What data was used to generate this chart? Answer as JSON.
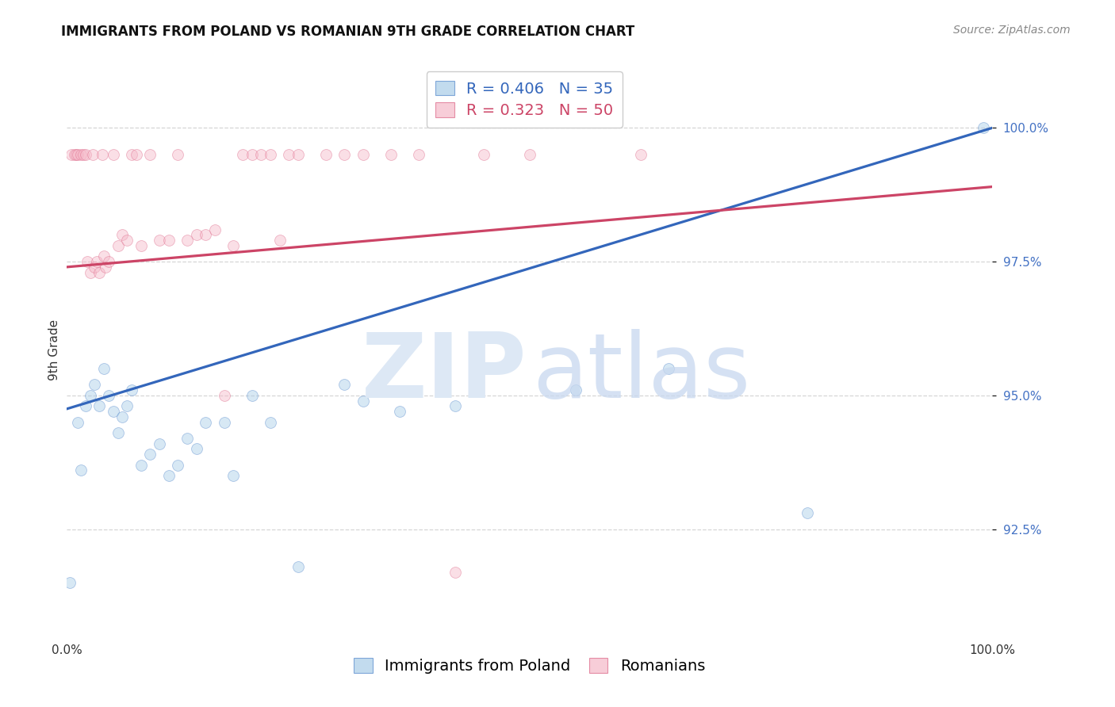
{
  "title": "IMMIGRANTS FROM POLAND VS ROMANIAN 9TH GRADE CORRELATION CHART",
  "source": "Source: ZipAtlas.com",
  "ylabel": "9th Grade",
  "blue_label": "Immigrants from Poland",
  "pink_label": "Romanians",
  "blue_R": 0.406,
  "blue_N": 35,
  "pink_R": 0.323,
  "pink_N": 50,
  "blue_fill_color": "#a8cce8",
  "pink_fill_color": "#f5b8c8",
  "blue_edge_color": "#5588cc",
  "pink_edge_color": "#dd6688",
  "blue_line_color": "#3366bb",
  "pink_line_color": "#cc4466",
  "xlim": [
    0.0,
    100.0
  ],
  "ylim": [
    90.5,
    101.2
  ],
  "yticks": [
    92.5,
    95.0,
    97.5,
    100.0
  ],
  "xtick_values": [
    0.0,
    20.0,
    40.0,
    60.0,
    80.0,
    100.0
  ],
  "xtick_labels": [
    "0.0%",
    "",
    "",
    "",
    "",
    "100.0%"
  ],
  "blue_scatter_x": [
    0.3,
    1.2,
    1.5,
    2.0,
    2.5,
    3.0,
    3.5,
    4.0,
    4.5,
    5.0,
    5.5,
    6.0,
    6.5,
    7.0,
    8.0,
    9.0,
    10.0,
    11.0,
    12.0,
    13.0,
    14.0,
    15.0,
    17.0,
    18.0,
    20.0,
    22.0,
    25.0,
    30.0,
    32.0,
    36.0,
    42.0,
    55.0,
    65.0,
    80.0,
    99.0
  ],
  "blue_scatter_y": [
    91.5,
    94.5,
    93.6,
    94.8,
    95.0,
    95.2,
    94.8,
    95.5,
    95.0,
    94.7,
    94.3,
    94.6,
    94.8,
    95.1,
    93.7,
    93.9,
    94.1,
    93.5,
    93.7,
    94.2,
    94.0,
    94.5,
    94.5,
    93.5,
    95.0,
    94.5,
    91.8,
    95.2,
    94.9,
    94.7,
    94.8,
    95.1,
    95.5,
    92.8,
    100.0
  ],
  "pink_scatter_x": [
    0.5,
    0.8,
    1.0,
    1.2,
    1.5,
    1.8,
    2.0,
    2.2,
    2.5,
    2.8,
    3.0,
    3.2,
    3.5,
    3.8,
    4.0,
    4.2,
    4.5,
    5.0,
    5.5,
    6.0,
    6.5,
    7.0,
    7.5,
    8.0,
    9.0,
    10.0,
    11.0,
    12.0,
    13.0,
    14.0,
    15.0,
    16.0,
    17.0,
    18.0,
    19.0,
    20.0,
    21.0,
    22.0,
    23.0,
    24.0,
    25.0,
    28.0,
    30.0,
    32.0,
    35.0,
    38.0,
    42.0,
    45.0,
    50.0,
    62.0
  ],
  "pink_scatter_y": [
    99.5,
    99.5,
    99.5,
    99.5,
    99.5,
    99.5,
    99.5,
    97.5,
    97.3,
    99.5,
    97.4,
    97.5,
    97.3,
    99.5,
    97.6,
    97.4,
    97.5,
    99.5,
    97.8,
    98.0,
    97.9,
    99.5,
    99.5,
    97.8,
    99.5,
    97.9,
    97.9,
    99.5,
    97.9,
    98.0,
    98.0,
    98.1,
    95.0,
    97.8,
    99.5,
    99.5,
    99.5,
    99.5,
    97.9,
    99.5,
    99.5,
    99.5,
    99.5,
    99.5,
    99.5,
    99.5,
    91.7,
    99.5,
    99.5,
    99.5
  ],
  "blue_line_x0": 0.0,
  "blue_line_y0": 94.75,
  "blue_line_x1": 100.0,
  "blue_line_y1": 100.0,
  "pink_line_x0": 0.0,
  "pink_line_y0": 97.4,
  "pink_line_x1": 100.0,
  "pink_line_y1": 98.9,
  "background_color": "#ffffff",
  "grid_color": "#cccccc",
  "right_tick_color": "#4472c4",
  "title_fontsize": 12,
  "source_fontsize": 10,
  "axis_label_fontsize": 11,
  "tick_fontsize": 11,
  "legend_fontsize": 14,
  "scatter_size": 100,
  "scatter_alpha": 0.45,
  "watermark_color_zip": "#dde8f5",
  "watermark_color_atlas": "#c8d8ef"
}
